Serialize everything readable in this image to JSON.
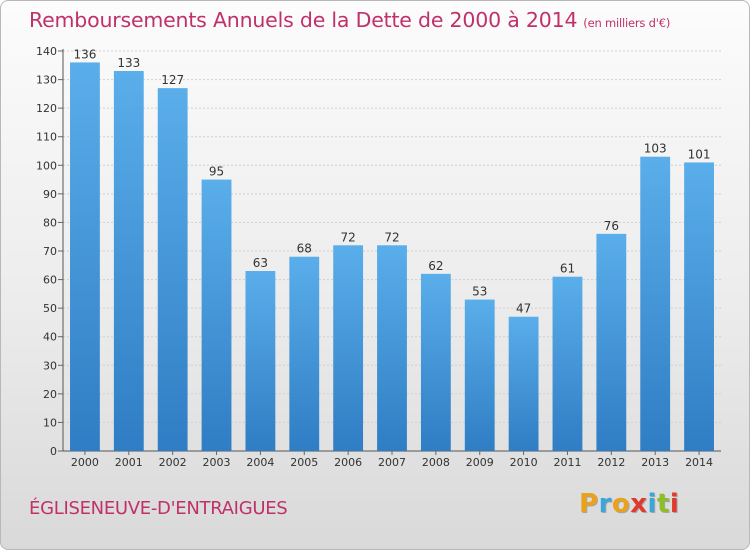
{
  "header": {
    "title": "Remboursements Annuels de la Dette de 2000 à 2014",
    "subtitle": "(en milliers d'€)"
  },
  "footer": {
    "commune": "ÉGLISENEUVE-D'ENTRAIGUES",
    "logo_text": "Proxiti"
  },
  "colors": {
    "bar_top": "#5aaeea",
    "bar_bottom": "#2f7dc4",
    "title": "#c0306a",
    "logo_letters": [
      "#e8a21c",
      "#3aa7d9",
      "#e8a21c",
      "#e03a2f",
      "#3aa7d9",
      "#8cbf26",
      "#e03a2f"
    ]
  },
  "chart_data": {
    "type": "bar",
    "categories": [
      "2000",
      "2001",
      "2002",
      "2003",
      "2004",
      "2005",
      "2006",
      "2007",
      "2008",
      "2009",
      "2010",
      "2011",
      "2012",
      "2013",
      "2014"
    ],
    "values": [
      136,
      133,
      127,
      95,
      63,
      68,
      72,
      72,
      62,
      53,
      47,
      61,
      76,
      103,
      101
    ],
    "value_labels": [
      "136",
      "133",
      "127",
      "95",
      "63",
      "68",
      "72",
      "72",
      "62",
      "53",
      "47",
      "61",
      "76",
      "103",
      "101"
    ],
    "title": "Remboursements Annuels de la Dette de 2000 à 2014",
    "subtitle": "(en milliers d'€)",
    "xlabel": "",
    "ylabel": "",
    "ylim": [
      0,
      140
    ],
    "yticks": [
      0,
      10,
      20,
      30,
      40,
      50,
      60,
      70,
      80,
      90,
      100,
      110,
      120,
      130,
      140
    ],
    "grid": true,
    "legend": "none"
  }
}
